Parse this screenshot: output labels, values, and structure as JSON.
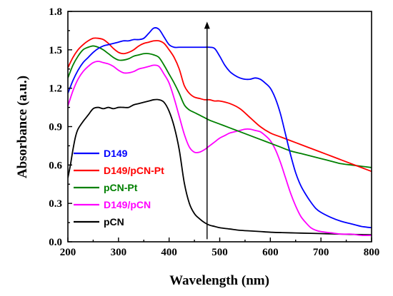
{
  "chart_data": {
    "type": "line",
    "xlabel": "Wavelength (nm)",
    "ylabel": "Absorbance (a.u.)",
    "xlim": [
      200,
      800
    ],
    "ylim": [
      0.0,
      1.8
    ],
    "xticks": [
      200,
      300,
      400,
      500,
      600,
      700,
      800
    ],
    "yticks": [
      0.0,
      0.3,
      0.6,
      0.9,
      1.2,
      1.5,
      1.8
    ],
    "xtick_labels": [
      "200",
      "300",
      "400",
      "500",
      "600",
      "700",
      "800"
    ],
    "ytick_labels": [
      "0.0",
      "0.3",
      "0.6",
      "0.9",
      "1.2",
      "1.5",
      "1.8"
    ],
    "legend_position": "bottom-left",
    "grid": false,
    "annotation": {
      "type": "arrow",
      "x": 475,
      "y_from": 0.02,
      "y_to": 1.72
    },
    "series": [
      {
        "name": "D149",
        "color": "#0000ff",
        "x": [
          200,
          210,
          220,
          230,
          240,
          250,
          260,
          270,
          280,
          290,
          300,
          310,
          320,
          330,
          340,
          350,
          360,
          370,
          380,
          390,
          400,
          410,
          420,
          430,
          440,
          450,
          460,
          470,
          480,
          490,
          500,
          510,
          520,
          530,
          540,
          550,
          560,
          570,
          580,
          590,
          600,
          610,
          620,
          630,
          640,
          650,
          660,
          670,
          680,
          690,
          700,
          720,
          740,
          760,
          780,
          800
        ],
        "y": [
          1.16,
          1.26,
          1.34,
          1.4,
          1.44,
          1.48,
          1.51,
          1.53,
          1.54,
          1.55,
          1.56,
          1.57,
          1.57,
          1.58,
          1.58,
          1.59,
          1.63,
          1.67,
          1.66,
          1.6,
          1.54,
          1.52,
          1.52,
          1.52,
          1.52,
          1.52,
          1.52,
          1.52,
          1.52,
          1.51,
          1.45,
          1.38,
          1.33,
          1.3,
          1.28,
          1.27,
          1.27,
          1.28,
          1.27,
          1.24,
          1.2,
          1.12,
          1.0,
          0.84,
          0.68,
          0.54,
          0.44,
          0.37,
          0.31,
          0.26,
          0.23,
          0.19,
          0.16,
          0.14,
          0.12,
          0.11
        ]
      },
      {
        "name": "D149/pCN-Pt",
        "color": "#ff0000",
        "x": [
          200,
          210,
          220,
          230,
          240,
          250,
          260,
          270,
          280,
          290,
          300,
          310,
          320,
          330,
          340,
          350,
          360,
          370,
          380,
          390,
          400,
          410,
          420,
          430,
          440,
          450,
          460,
          470,
          480,
          490,
          500,
          520,
          540,
          560,
          580,
          600,
          620,
          640,
          660,
          680,
          700,
          720,
          740,
          760,
          780,
          800
        ],
        "y": [
          1.36,
          1.44,
          1.5,
          1.54,
          1.57,
          1.59,
          1.59,
          1.58,
          1.55,
          1.51,
          1.48,
          1.47,
          1.48,
          1.5,
          1.53,
          1.55,
          1.56,
          1.57,
          1.57,
          1.55,
          1.5,
          1.44,
          1.35,
          1.22,
          1.16,
          1.13,
          1.12,
          1.11,
          1.11,
          1.1,
          1.1,
          1.08,
          1.04,
          0.97,
          0.9,
          0.85,
          0.82,
          0.79,
          0.76,
          0.73,
          0.7,
          0.67,
          0.64,
          0.61,
          0.58,
          0.55
        ]
      },
      {
        "name": "pCN-Pt",
        "color": "#008000",
        "x": [
          200,
          210,
          220,
          230,
          240,
          250,
          260,
          270,
          280,
          290,
          300,
          310,
          320,
          330,
          340,
          350,
          360,
          370,
          380,
          390,
          400,
          410,
          420,
          430,
          440,
          450,
          460,
          470,
          480,
          500,
          520,
          540,
          560,
          580,
          600,
          620,
          640,
          660,
          680,
          700,
          720,
          740,
          760,
          780,
          800
        ],
        "y": [
          1.28,
          1.38,
          1.45,
          1.5,
          1.52,
          1.53,
          1.52,
          1.5,
          1.47,
          1.44,
          1.42,
          1.42,
          1.43,
          1.45,
          1.46,
          1.47,
          1.47,
          1.46,
          1.44,
          1.38,
          1.31,
          1.24,
          1.16,
          1.07,
          1.03,
          1.01,
          0.99,
          0.97,
          0.95,
          0.92,
          0.89,
          0.86,
          0.83,
          0.8,
          0.77,
          0.74,
          0.71,
          0.69,
          0.67,
          0.65,
          0.63,
          0.61,
          0.6,
          0.59,
          0.58
        ]
      },
      {
        "name": "D149/pCN",
        "color": "#ff00ff",
        "x": [
          200,
          210,
          220,
          230,
          240,
          250,
          260,
          270,
          280,
          290,
          300,
          310,
          320,
          330,
          340,
          350,
          360,
          370,
          380,
          390,
          400,
          410,
          420,
          430,
          440,
          450,
          460,
          470,
          480,
          490,
          500,
          510,
          520,
          530,
          540,
          550,
          560,
          570,
          580,
          590,
          600,
          610,
          620,
          630,
          640,
          650,
          660,
          670,
          680,
          690,
          700,
          720,
          740,
          760,
          780,
          800
        ],
        "y": [
          1.06,
          1.18,
          1.27,
          1.33,
          1.37,
          1.4,
          1.41,
          1.4,
          1.39,
          1.37,
          1.34,
          1.32,
          1.32,
          1.33,
          1.35,
          1.36,
          1.37,
          1.38,
          1.37,
          1.31,
          1.24,
          1.12,
          0.98,
          0.84,
          0.74,
          0.7,
          0.7,
          0.72,
          0.75,
          0.78,
          0.81,
          0.83,
          0.85,
          0.86,
          0.87,
          0.88,
          0.88,
          0.87,
          0.86,
          0.83,
          0.79,
          0.72,
          0.62,
          0.5,
          0.38,
          0.28,
          0.2,
          0.15,
          0.11,
          0.09,
          0.08,
          0.07,
          0.06,
          0.06,
          0.05,
          0.05
        ]
      },
      {
        "name": "pCN",
        "color": "#000000",
        "x": [
          200,
          205,
          210,
          215,
          220,
          230,
          240,
          250,
          260,
          270,
          280,
          290,
          300,
          310,
          320,
          330,
          340,
          350,
          360,
          370,
          380,
          390,
          400,
          410,
          420,
          430,
          440,
          450,
          460,
          470,
          480,
          490,
          500,
          520,
          540,
          560,
          580,
          600,
          620,
          640,
          660,
          680,
          700,
          720,
          740,
          760,
          780,
          800
        ],
        "y": [
          0.5,
          0.6,
          0.72,
          0.82,
          0.88,
          0.94,
          0.99,
          1.04,
          1.05,
          1.04,
          1.05,
          1.04,
          1.05,
          1.05,
          1.05,
          1.07,
          1.08,
          1.09,
          1.1,
          1.11,
          1.11,
          1.09,
          1.02,
          0.9,
          0.72,
          0.46,
          0.3,
          0.22,
          0.18,
          0.15,
          0.13,
          0.12,
          0.11,
          0.1,
          0.09,
          0.085,
          0.08,
          0.075,
          0.072,
          0.07,
          0.068,
          0.066,
          0.064,
          0.062,
          0.06,
          0.058,
          0.056,
          0.055
        ]
      }
    ]
  }
}
